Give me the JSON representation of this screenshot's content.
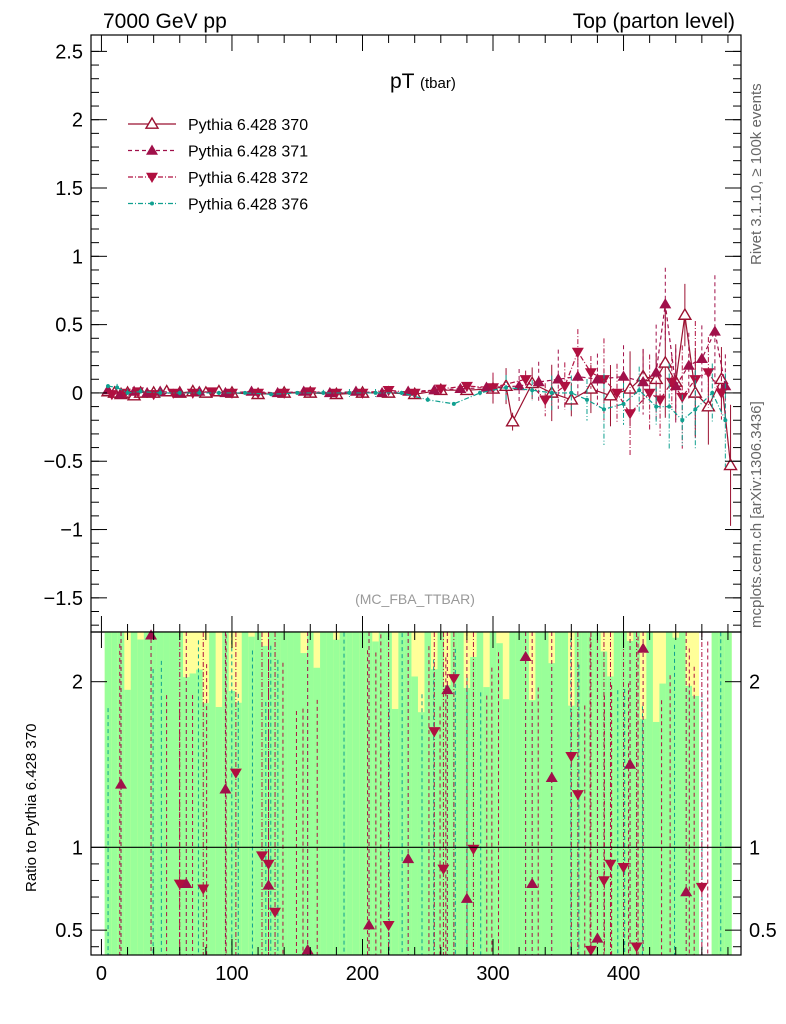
{
  "header": {
    "left": "7000 GeV pp",
    "right": "Top (parton level)"
  },
  "side_text": {
    "rivet": "Rivet 3.1.10, ≥ 100k events",
    "mcplots": "mcplots.cern.ch [arXiv:1306.3436]"
  },
  "ratio_ylabel": "Ratio to Pythia 6.428 370",
  "chart_data": [
    {
      "type": "line",
      "title": "pT",
      "subtitle": "(tbar)",
      "watermark": "(MC_FBA_TTBAR)",
      "xlim": [
        -8,
        490
      ],
      "ylim": [
        -1.75,
        2.62
      ],
      "yticks": [
        -1.5,
        -1,
        -0.5,
        0,
        0.5,
        1,
        1.5,
        2,
        2.5
      ],
      "ytick_labels": [
        "−1.5",
        "−1",
        "−0.5",
        "0",
        "0.5",
        "1",
        "1.5",
        "2",
        "2.5"
      ],
      "legend_position": "top-left",
      "series": [
        {
          "name": "Pythia 6.428 370",
          "color": "#9b1030",
          "marker": "triangle-up-open",
          "dash": "solid",
          "points": [
            [
              5,
              0.01
            ],
            [
              10,
              0.0
            ],
            [
              15,
              -0.01
            ],
            [
              20,
              0.0
            ],
            [
              25,
              -0.02
            ],
            [
              30,
              0.0
            ],
            [
              40,
              0.0
            ],
            [
              50,
              0.01
            ],
            [
              60,
              0.0
            ],
            [
              70,
              0.01
            ],
            [
              80,
              0.0
            ],
            [
              90,
              0.01
            ],
            [
              100,
              0.0
            ],
            [
              120,
              -0.01
            ],
            [
              140,
              0.0
            ],
            [
              160,
              0.0
            ],
            [
              180,
              -0.01
            ],
            [
              200,
              0.0
            ],
            [
              220,
              0.0
            ],
            [
              240,
              -0.01
            ],
            [
              260,
              0.02
            ],
            [
              280,
              0.02
            ],
            [
              300,
              0.03
            ],
            [
              310,
              0.05
            ],
            [
              315,
              -0.21
            ],
            [
              330,
              0.07
            ],
            [
              345,
              0.0
            ],
            [
              360,
              -0.05
            ],
            [
              375,
              0.03
            ],
            [
              390,
              -0.02
            ],
            [
              405,
              0.03
            ],
            [
              415,
              0.12
            ],
            [
              425,
              0.1
            ],
            [
              432,
              0.22
            ],
            [
              440,
              0.08
            ],
            [
              447,
              0.57
            ],
            [
              455,
              0.0
            ],
            [
              465,
              -0.1
            ],
            [
              475,
              0.1
            ],
            [
              482,
              -0.53
            ]
          ]
        },
        {
          "name": "Pythia 6.428 371",
          "color": "#a0104a",
          "marker": "triangle-up-filled",
          "dash": "dashed",
          "points": [
            [
              5,
              0.02
            ],
            [
              15,
              -0.01
            ],
            [
              25,
              0.01
            ],
            [
              35,
              0.0
            ],
            [
              45,
              0.01
            ],
            [
              60,
              0.0
            ],
            [
              75,
              0.01
            ],
            [
              95,
              0.0
            ],
            [
              115,
              0.01
            ],
            [
              135,
              0.0
            ],
            [
              155,
              0.01
            ],
            [
              175,
              0.0
            ],
            [
              195,
              0.01
            ],
            [
              215,
              0.0
            ],
            [
              235,
              0.01
            ],
            [
              255,
              0.02
            ],
            [
              275,
              0.03
            ],
            [
              295,
              0.04
            ],
            [
              320,
              0.05
            ],
            [
              335,
              0.08
            ],
            [
              350,
              0.1
            ],
            [
              365,
              0.12
            ],
            [
              380,
              0.1
            ],
            [
              400,
              0.12
            ],
            [
              415,
              0.08
            ],
            [
              425,
              0.15
            ],
            [
              432,
              0.65
            ],
            [
              440,
              0.05
            ],
            [
              450,
              0.2
            ],
            [
              460,
              0.25
            ],
            [
              470,
              0.45
            ],
            [
              478,
              0.05
            ]
          ]
        },
        {
          "name": "Pythia 6.428 372",
          "color": "#b01040",
          "marker": "triangle-down-filled",
          "dash": "dotdashed",
          "points": [
            [
              8,
              -0.01
            ],
            [
              18,
              0.0
            ],
            [
              28,
              0.01
            ],
            [
              40,
              -0.01
            ],
            [
              55,
              0.0
            ],
            [
              70,
              0.0
            ],
            [
              85,
              0.01
            ],
            [
              100,
              0.0
            ],
            [
              120,
              0.0
            ],
            [
              140,
              0.0
            ],
            [
              160,
              0.01
            ],
            [
              180,
              0.0
            ],
            [
              200,
              0.0
            ],
            [
              220,
              0.02
            ],
            [
              240,
              0.0
            ],
            [
              260,
              0.03
            ],
            [
              280,
              0.05
            ],
            [
              300,
              0.04
            ],
            [
              325,
              0.1
            ],
            [
              340,
              -0.05
            ],
            [
              355,
              0.05
            ],
            [
              365,
              0.3
            ],
            [
              375,
              0.15
            ],
            [
              385,
              0.1
            ],
            [
              395,
              0.0
            ],
            [
              405,
              -0.15
            ],
            [
              420,
              0.0
            ],
            [
              428,
              -0.05
            ],
            [
              437,
              0.08
            ],
            [
              445,
              -0.03
            ],
            [
              455,
              0.1
            ],
            [
              465,
              0.15
            ],
            [
              475,
              0.0
            ]
          ]
        },
        {
          "name": "Pythia 6.428 376",
          "color": "#10a090",
          "marker": "dot",
          "dash": "dotdashed",
          "points": [
            [
              5,
              0.05
            ],
            [
              12,
              0.04
            ],
            [
              20,
              0.0
            ],
            [
              30,
              0.01
            ],
            [
              45,
              0.0
            ],
            [
              60,
              0.0
            ],
            [
              75,
              0.0
            ],
            [
              90,
              0.0
            ],
            [
              110,
              0.0
            ],
            [
              130,
              -0.01
            ],
            [
              150,
              0.0
            ],
            [
              170,
              0.0
            ],
            [
              190,
              0.0
            ],
            [
              210,
              0.0
            ],
            [
              230,
              0.0
            ],
            [
              250,
              -0.05
            ],
            [
              270,
              -0.08
            ],
            [
              290,
              0.0
            ],
            [
              310,
              0.04
            ],
            [
              330,
              0.02
            ],
            [
              345,
              0.0
            ],
            [
              360,
              0.0
            ],
            [
              372,
              -0.05
            ],
            [
              385,
              -0.12
            ],
            [
              400,
              -0.08
            ],
            [
              412,
              0.02
            ],
            [
              425,
              -0.1
            ],
            [
              435,
              -0.1
            ],
            [
              445,
              -0.2
            ],
            [
              455,
              -0.12
            ],
            [
              468,
              0.0
            ],
            [
              478,
              -0.2
            ]
          ]
        }
      ]
    },
    {
      "type": "line",
      "ylabel": "Ratio to Pythia 6.428 370",
      "xlim": [
        -8,
        490
      ],
      "ylim": [
        0.35,
        2.3
      ],
      "yticks": [
        0.5,
        1,
        2
      ],
      "ytick_labels": [
        "0.5",
        "1",
        "2"
      ],
      "xticks": [
        0,
        100,
        200,
        300,
        400
      ],
      "xtick_labels": [
        "0",
        "100",
        "200",
        "300",
        "400"
      ],
      "reference_line": 1,
      "band_colors": {
        "inner": "#99ff99",
        "outer": "#ffff99"
      },
      "ratio_points_371": [
        [
          15,
          1.38
        ],
        [
          38,
          2.28
        ],
        [
          65,
          0.78
        ],
        [
          95,
          1.35
        ],
        [
          128,
          0.77
        ],
        [
          158,
          0.38
        ],
        [
          205,
          0.53
        ],
        [
          235,
          0.93
        ],
        [
          265,
          1.95
        ],
        [
          280,
          0.69
        ],
        [
          325,
          2.15
        ],
        [
          330,
          0.78
        ],
        [
          345,
          1.42
        ],
        [
          380,
          0.45
        ],
        [
          405,
          1.5
        ],
        [
          415,
          2.2
        ],
        [
          448,
          0.73
        ]
      ],
      "ratio_points_372": [
        [
          60,
          0.78
        ],
        [
          78,
          0.75
        ],
        [
          103,
          1.45
        ],
        [
          123,
          0.95
        ],
        [
          128,
          0.9
        ],
        [
          133,
          0.61
        ],
        [
          220,
          0.53
        ],
        [
          255,
          1.7
        ],
        [
          262,
          0.87
        ],
        [
          270,
          2.02
        ],
        [
          285,
          0.99
        ],
        [
          360,
          1.55
        ],
        [
          365,
          1.32
        ],
        [
          375,
          0.38
        ],
        [
          385,
          0.8
        ],
        [
          390,
          0.9
        ],
        [
          400,
          0.88
        ],
        [
          410,
          0.4
        ],
        [
          460,
          0.76
        ]
      ]
    }
  ]
}
